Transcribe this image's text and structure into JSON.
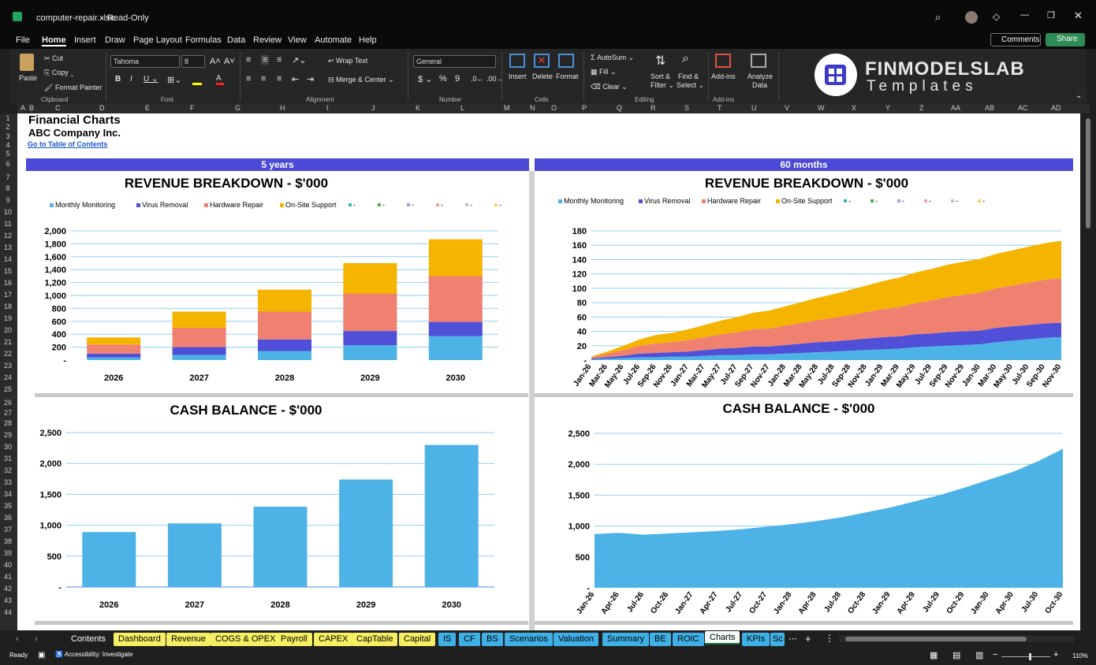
{
  "window": {
    "filename": "computer-repair.xlsx",
    "mode": "Read-Only"
  },
  "menu": [
    "File",
    "Home",
    "Insert",
    "Draw",
    "Page Layout",
    "Formulas",
    "Data",
    "Review",
    "View",
    "Automate",
    "Help"
  ],
  "comments_label": "Comments",
  "share_label": "Share",
  "ribbon": {
    "clipboard": {
      "paste": "Paste",
      "cut": "Cut",
      "copy": "Copy",
      "format_painter": "Format Painter",
      "group": "Clipboard"
    },
    "font": {
      "name": "Tahoma",
      "size": "8",
      "group": "Font"
    },
    "alignment": {
      "wrap": "Wrap Text",
      "merge": "Merge & Center",
      "group": "Alignment"
    },
    "number": {
      "format": "General",
      "group": "Number"
    },
    "cells": {
      "insert": "Insert",
      "delete": "Delete",
      "format": "Format",
      "group": "Cells"
    },
    "editing": {
      "autosum": "AutoSum",
      "fill": "Fill",
      "clear": "Clear",
      "sort": "Sort &",
      "sort2": "Filter",
      "find": "Find &",
      "find2": "Select",
      "group": "Editing"
    },
    "addins": {
      "addins": "Add-ins",
      "analyze": "Analyze",
      "analyze2": "Data",
      "group": "Add-ins"
    },
    "brand": {
      "name": "FINMODELSLAB",
      "sub": "Templates"
    }
  },
  "columns": [
    "A",
    "B",
    "C",
    "D",
    "E",
    "F",
    "G",
    "H",
    "I",
    "J",
    "K",
    "L",
    "M",
    "N",
    "O",
    "P",
    "Q",
    "R",
    "S",
    "T",
    "U",
    "V",
    "W",
    "X",
    "Y",
    "Z",
    "AA",
    "AB",
    "AC",
    "AD"
  ],
  "rows": [
    "1",
    "2",
    "3",
    "4",
    "5",
    "6",
    "7",
    "8",
    "9",
    "10",
    "11",
    "12",
    "13",
    "14",
    "15",
    "16",
    "17",
    "18",
    "19",
    "20",
    "21",
    "22",
    "23",
    "24",
    "25",
    "26",
    "27",
    "28",
    "29",
    "30",
    "31",
    "32",
    "33",
    "34",
    "35",
    "36",
    "37",
    "38",
    "39",
    "40",
    "41",
    "42",
    "43",
    "44"
  ],
  "sheet": {
    "title": "Financial Charts",
    "company": "ABC Company Inc.",
    "toc_link": "Go to Table of Contents",
    "left_header": "5 years",
    "right_header": "60 months"
  },
  "tabs": [
    "Contents",
    "Dashboard",
    "Revenue",
    "COGS & OPEX",
    "Payroll",
    "CAPEX",
    "CapTable",
    "Capital",
    "IS",
    "CF",
    "BS",
    "Scenarios",
    "Valuation",
    "Summary",
    "BE",
    "ROIC",
    "Charts",
    "KPIs",
    "Sc"
  ],
  "status": {
    "ready": "Ready",
    "accessibility": "Accessibility: Investigate",
    "zoom": "110%"
  },
  "colors": {
    "monitoring": "#4db3e6",
    "virus": "#4f4fd8",
    "hardware": "#f08070",
    "onsite": "#f5b400",
    "header_band": "#4a4ad6"
  },
  "chart_data": [
    {
      "type": "bar",
      "title": "REVENUE BREAKDOWN - $'000",
      "stacked": true,
      "categories": [
        "2026",
        "2027",
        "2028",
        "2029",
        "2030"
      ],
      "series": [
        {
          "name": "Monthly Monitoring",
          "values": [
            40,
            80,
            140,
            230,
            370
          ]
        },
        {
          "name": "Virus Removal",
          "values": [
            60,
            120,
            180,
            220,
            220
          ]
        },
        {
          "name": "Hardware Repair",
          "values": [
            140,
            300,
            430,
            580,
            710
          ]
        },
        {
          "name": "On-Site Support",
          "values": [
            110,
            250,
            340,
            470,
            570
          ]
        }
      ],
      "legend_extra": [
        "-",
        "-",
        "-",
        "-",
        "-",
        "-"
      ],
      "ylim": [
        0,
        2000
      ],
      "yticks": [
        "-",
        "200",
        "400",
        "600",
        "800",
        "1,000",
        "1,200",
        "1,400",
        "1,600",
        "1,800",
        "2,000"
      ]
    },
    {
      "type": "area",
      "title": "REVENUE BREAKDOWN - $'000",
      "stacked": true,
      "x": [
        "Jan-26",
        "Mar-26",
        "May-26",
        "Jul-26",
        "Sep-26",
        "Nov-26",
        "Jan-27",
        "Mar-27",
        "May-27",
        "Jul-27",
        "Sep-27",
        "Nov-27",
        "Jan-28",
        "Mar-28",
        "May-28",
        "Jul-28",
        "Sep-28",
        "Nov-28",
        "Jan-29",
        "Mar-29",
        "May-29",
        "Jul-29",
        "Sep-29",
        "Nov-29",
        "Jan-30",
        "Mar-30",
        "May-30",
        "Jul-30",
        "Sep-30",
        "Nov-30"
      ],
      "series": [
        {
          "name": "Monthly Monitoring",
          "values": [
            1,
            2,
            3,
            4,
            4,
            5,
            5,
            6,
            7,
            7,
            8,
            8,
            9,
            10,
            11,
            12,
            13,
            14,
            15,
            16,
            18,
            19,
            20,
            21,
            22,
            25,
            27,
            29,
            31,
            32
          ]
        },
        {
          "name": "Virus Removal",
          "values": [
            1,
            2,
            3,
            5,
            6,
            6,
            7,
            8,
            9,
            10,
            11,
            11,
            12,
            13,
            14,
            14,
            15,
            16,
            17,
            17,
            18,
            18,
            19,
            19,
            19,
            20,
            20,
            20,
            20,
            20
          ]
        },
        {
          "name": "Hardware Repair",
          "values": [
            2,
            5,
            8,
            11,
            13,
            14,
            16,
            18,
            20,
            22,
            24,
            25,
            27,
            29,
            31,
            33,
            35,
            37,
            39,
            41,
            43,
            46,
            49,
            51,
            53,
            55,
            57,
            59,
            61,
            62
          ]
        },
        {
          "name": "On-Site Support",
          "values": [
            1,
            3,
            6,
            9,
            12,
            13,
            15,
            17,
            19,
            21,
            23,
            25,
            27,
            29,
            31,
            33,
            35,
            37,
            39,
            41,
            43,
            44,
            45,
            46,
            47,
            48,
            49,
            50,
            51,
            52
          ]
        }
      ],
      "legend_extra": [
        "-",
        "-",
        "-",
        "-",
        "-",
        "-"
      ],
      "ylim": [
        0,
        180
      ],
      "yticks": [
        "-",
        "20",
        "40",
        "60",
        "80",
        "100",
        "120",
        "140",
        "160",
        "180"
      ]
    },
    {
      "type": "bar",
      "title": "CASH BALANCE - $'000",
      "categories": [
        "2026",
        "2027",
        "2028",
        "2029",
        "2030"
      ],
      "values": [
        890,
        1030,
        1300,
        1740,
        2300
      ],
      "ylim": [
        0,
        2500
      ],
      "yticks": [
        "-",
        "500",
        "1,000",
        "1,500",
        "2,000",
        "2,500"
      ]
    },
    {
      "type": "area",
      "title": "CASH BALANCE - $'000",
      "x": [
        "Jan-26",
        "Apr-26",
        "Jul-26",
        "Oct-26",
        "Jan-27",
        "Apr-27",
        "Jul-27",
        "Oct-27",
        "Jan-28",
        "Apr-28",
        "Jul-28",
        "Oct-28",
        "Jan-29",
        "Apr-29",
        "Jul-29",
        "Oct-29",
        "Jan-30",
        "Apr-30",
        "Jul-30",
        "Oct-30"
      ],
      "values": [
        870,
        890,
        860,
        880,
        900,
        920,
        950,
        990,
        1030,
        1080,
        1140,
        1220,
        1300,
        1400,
        1500,
        1620,
        1750,
        1880,
        2050,
        2250
      ],
      "ylim": [
        0,
        2500
      ],
      "yticks": [
        "-",
        "500",
        "1,000",
        "1,500",
        "2,000",
        "2,500"
      ]
    }
  ]
}
